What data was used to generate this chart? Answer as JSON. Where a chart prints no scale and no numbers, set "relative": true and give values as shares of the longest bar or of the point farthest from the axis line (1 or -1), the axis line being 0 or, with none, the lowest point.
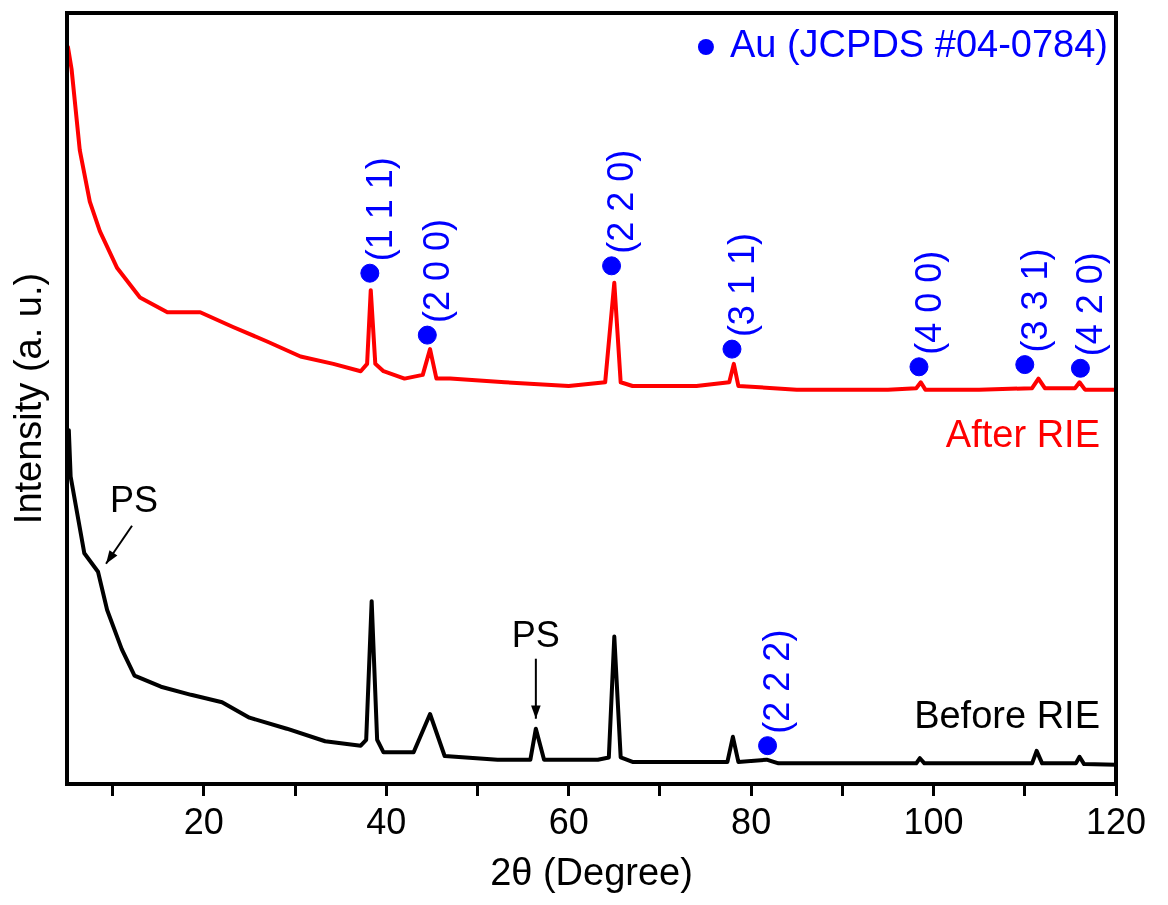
{
  "chart_data": {
    "type": "line",
    "relative": true,
    "xlabel": "2θ (Degree)",
    "ylabel": "Intensity (a. u.)",
    "xlim": [
      5,
      120
    ],
    "xticks": [
      {
        "value": 10,
        "label": null
      },
      20,
      {
        "value": 30,
        "label": null
      },
      40,
      {
        "value": 50,
        "label": null
      },
      60,
      {
        "value": 70,
        "label": null
      },
      80,
      {
        "value": 90,
        "label": null
      },
      100,
      {
        "value": 110,
        "label": null
      },
      120
    ],
    "grid": false,
    "legend": "top right",
    "marker": "none",
    "line_style": "solid",
    "series": [
      {
        "name": "After RIE",
        "color": "#ff0000",
        "x": [
          5.1,
          5.5,
          6.4,
          7.5,
          8.6,
          10.5,
          13,
          16,
          19.6,
          23.2,
          27,
          30.6,
          34.2,
          37.2,
          37.9,
          38.3,
          38.8,
          39.7,
          42,
          44,
          44.8,
          45.5,
          47,
          53,
          60,
          64,
          65.0,
          65.7,
          67,
          74,
          77.6,
          78.1,
          78.6,
          85,
          95,
          98.1,
          98.6,
          99.1,
          105,
          110.8,
          111.5,
          112.2,
          115.5,
          116.0,
          116.6,
          120
        ],
        "values": [
          1.0,
          0.97,
          0.86,
          0.79,
          0.75,
          0.7,
          0.66,
          0.64,
          0.64,
          0.62,
          0.6,
          0.58,
          0.57,
          0.56,
          0.57,
          0.67,
          0.57,
          0.56,
          0.55,
          0.555,
          0.59,
          0.55,
          0.55,
          0.545,
          0.54,
          0.545,
          0.68,
          0.545,
          0.54,
          0.54,
          0.545,
          0.57,
          0.54,
          0.535,
          0.535,
          0.537,
          0.545,
          0.535,
          0.535,
          0.537,
          0.55,
          0.537,
          0.537,
          0.545,
          0.535,
          0.535
        ]
      },
      {
        "name": "Before RIE",
        "color": "#000000",
        "x": [
          5.2,
          5.4,
          6.9,
          8.4,
          9.4,
          11,
          12.4,
          15.3,
          18.6,
          22,
          25,
          29.1,
          33.3,
          37.2,
          37.8,
          38.4,
          39.0,
          39.7,
          43,
          44.8,
          46.4,
          52.2,
          55.8,
          56.4,
          57.3,
          63.2,
          64.4,
          65.0,
          65.7,
          67,
          77.4,
          78.0,
          78.6,
          81.7,
          83,
          98.1,
          98.5,
          99,
          110.8,
          111.3,
          111.9,
          115.6,
          116,
          116.5,
          120
        ],
        "values": [
          0.48,
          0.417,
          0.313,
          0.288,
          0.236,
          0.183,
          0.147,
          0.132,
          0.121,
          0.111,
          0.09,
          0.075,
          0.058,
          0.052,
          0.06,
          0.248,
          0.06,
          0.043,
          0.043,
          0.095,
          0.038,
          0.033,
          0.033,
          0.075,
          0.033,
          0.033,
          0.036,
          0.2,
          0.036,
          0.03,
          0.03,
          0.064,
          0.03,
          0.033,
          0.028,
          0.028,
          0.035,
          0.028,
          0.028,
          0.045,
          0.028,
          0.028,
          0.037,
          0.027,
          0.026
        ]
      },
      {
        "name": "Au (JCPDS #04-0784)",
        "color": "#0000ff",
        "type": "scatter",
        "marker": "circle",
        "x": [
          38.2,
          44.5,
          64.7,
          77.9,
          81.8,
          98.4,
          110.0,
          116.1
        ],
        "values": [
          0.693,
          0.609,
          0.703,
          0.59,
          0.052,
          0.566,
          0.569,
          0.564
        ]
      }
    ],
    "annotations": [
      {
        "text": "(1 1 1)",
        "x": 38.2,
        "y": 0.693
      },
      {
        "text": "(2 0 0)",
        "x": 44.5,
        "y": 0.609
      },
      {
        "text": "(2 2 0)",
        "x": 64.7,
        "y": 0.703
      },
      {
        "text": "(3 1 1)",
        "x": 77.9,
        "y": 0.59
      },
      {
        "text": "(2 2 2)",
        "x": 81.8,
        "y": 0.052
      },
      {
        "text": "(4 0 0)",
        "x": 98.4,
        "y": 0.566
      },
      {
        "text": "(3 3 1)",
        "x": 110.0,
        "y": 0.569
      },
      {
        "text": "(4 2 0)",
        "x": 116.1,
        "y": 0.564
      },
      {
        "text": "PS",
        "x": 8.4,
        "y": 0.288
      },
      {
        "text": "PS",
        "x": 56.4,
        "y": 0.075
      }
    ]
  }
}
